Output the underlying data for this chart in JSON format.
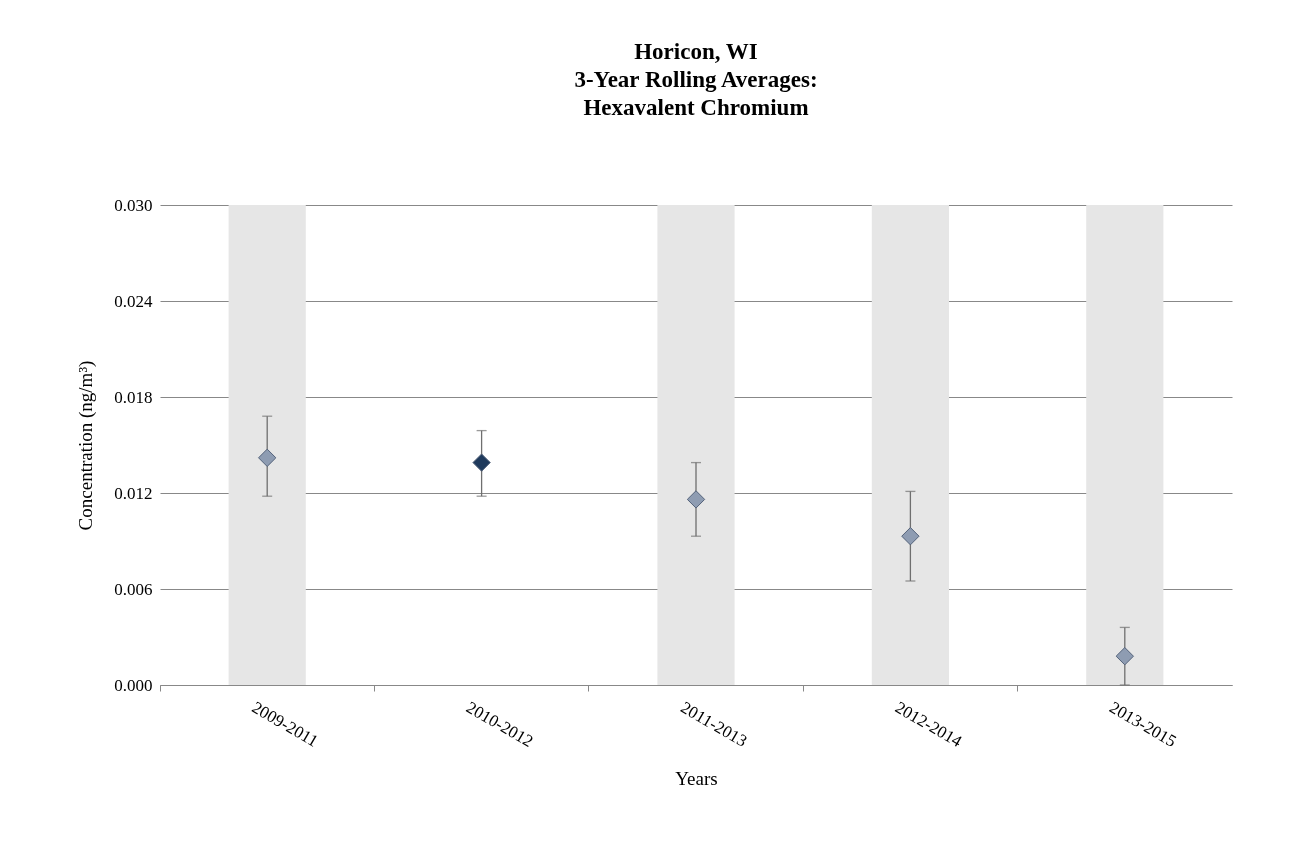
{
  "chart_data": {
    "type": "scatter",
    "title": "Horicon, WI\n3-Year Rolling Averages:\nHexavalent Chromium",
    "xlabel": "Years",
    "ylabel": "Concentration (ng/m³)",
    "categories": [
      "2009-2011",
      "2010-2012",
      "2011-2013",
      "2012-2014",
      "2013-2015"
    ],
    "series": [
      {
        "colors": [
          "#8e9cb2",
          "#1f3a5c",
          "#8e9cb2",
          "#8e9cb2",
          "#8e9cb2"
        ],
        "values": [
          0.0142,
          0.0139,
          0.0116,
          0.0093,
          0.0018
        ],
        "errors": [
          [
            0.0118,
            0.0168
          ],
          [
            0.0118,
            0.0159
          ],
          [
            0.0093,
            0.0139
          ],
          [
            0.0065,
            0.0121
          ],
          [
            0.0,
            0.0036
          ]
        ]
      }
    ],
    "ylim": [
      0,
      0.03
    ],
    "yticks": [
      {
        "value": 0,
        "label": "0.000"
      },
      {
        "value": 0.006,
        "label": "0.006"
      },
      {
        "value": 0.012,
        "label": "0.012"
      },
      {
        "value": 0.018,
        "label": "0.018"
      },
      {
        "value": 0.024,
        "label": "0.024"
      },
      {
        "value": 0.03,
        "label": "0.030"
      }
    ],
    "bands": [
      {
        "axis": "x",
        "from": "2009-2011",
        "to": "2009-2011",
        "color": "#e6e6e6"
      },
      {
        "axis": "x",
        "from": "2011-2013",
        "to": "2011-2013",
        "color": "#e6e6e6"
      },
      {
        "axis": "x",
        "from": "2012-2014",
        "to": "2012-2014",
        "color": "#e6e6e6"
      },
      {
        "axis": "x",
        "from": "2013-2015",
        "to": "2013-2015",
        "color": "#e6e6e6"
      }
    ],
    "grid": "y",
    "marker": "diamond"
  }
}
